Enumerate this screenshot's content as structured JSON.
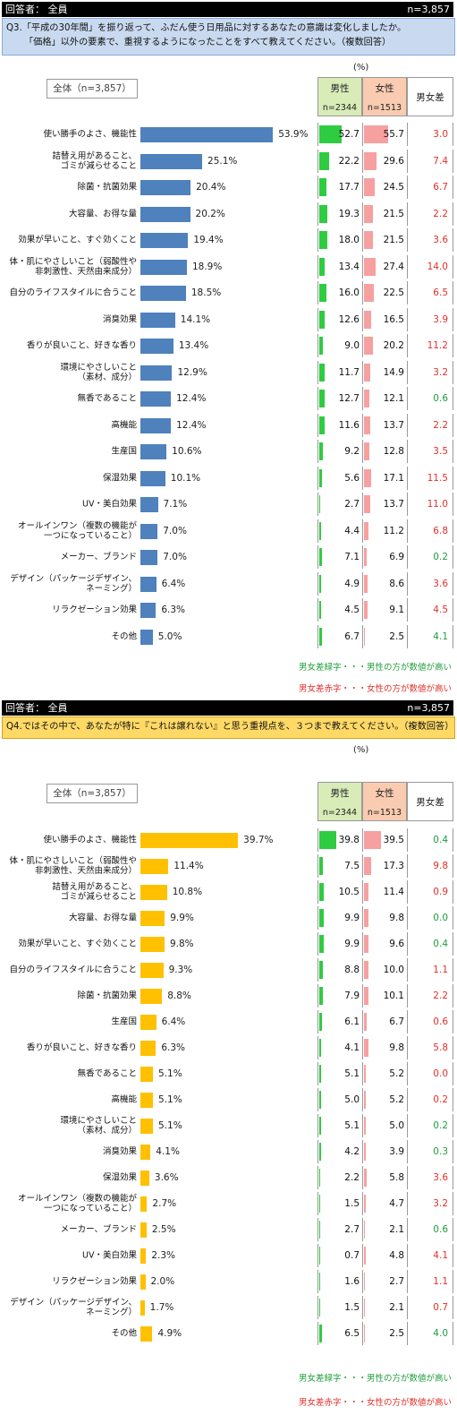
{
  "common": {
    "respondent": "回答者： 全員",
    "n_label": "n=3,857",
    "unit": "(%)",
    "total_label": "全体（n=3,857）",
    "male_label": "男性",
    "male_n": "n=2344",
    "female_label": "女性",
    "female_n": "n=1513",
    "diff_label": "男女差",
    "note_green": "男女差緑字・・・男性の方が数値が高い",
    "note_red": "男女差赤字・・・女性の方が数値が高い"
  },
  "colors": {
    "q3_bar": "#4f81bd",
    "q4_bar": "#ffc000",
    "male": "#2ecc40",
    "female": "#f7a0a0",
    "green": "#1e9e3a",
    "red": "#e0302a"
  },
  "q3": {
    "question": "Q3.「平成の30年間」を振り返って、ふだん使う日用品に対するあなたの意識は変化しましたか。",
    "question2": "「価格」以外の要素で、重視するようになったことをすべて教えてください。（複数回答）"
  },
  "q4": {
    "question": "Q4.ではその中で、あなたが特に『これは譲れない』と思う重視点を、３つまで教えてください。（複数回答）"
  },
  "chart_data": [
    {
      "type": "bar",
      "ylabel": "(%)",
      "categories": [
        "使い勝手のよさ、機能性",
        "詰替え用があること、ゴミが減らせること",
        "除菌・抗菌効果",
        "大容量、お得な量",
        "効果が早いこと、すぐ効くこと",
        "体・肌にやさしいこと（弱酸性や非刺激性、天然由来成分）",
        "自分のライフスタイルに合うこと",
        "消臭効果",
        "香りが良いこと、好きな香り",
        "環境にやさしいこと（素材、成分）",
        "無香であること",
        "高機能",
        "生産国",
        "保湿効果",
        "UV・美白効果",
        "オールインワン（複数の機能が一つになっていること）",
        "メーカー、ブランド",
        "デザイン（パッケージデザイン、ネーミング）",
        "リラクゼーション効果",
        "その他"
      ],
      "labels": [
        "使い勝手のよさ、機能性",
        "詰替え用があること、\nゴミが減らせること",
        "除菌・抗菌効果",
        "大容量、お得な量",
        "効果が早いこと、すぐ効くこと",
        "体・肌にやさしいこと（弱酸性や\n非刺激性、天然由来成分）",
        "自分のライフスタイルに合うこと",
        "消臭効果",
        "香りが良いこと、好きな香り",
        "環境にやさしいこと\n（素材、成分）",
        "無香であること",
        "高機能",
        "生産国",
        "保湿効果",
        "UV・美白効果",
        "オールインワン（複数の機能が\n一つになっていること）",
        "メーカー、ブランド",
        "デザイン（パッケージデザイン、\nネーミング）",
        "リラクゼーション効果",
        "その他"
      ],
      "series": [
        {
          "name": "全体（n=3,857）",
          "values": [
            53.9,
            25.1,
            20.4,
            20.2,
            19.4,
            18.9,
            18.5,
            14.1,
            13.4,
            12.9,
            12.4,
            12.4,
            10.6,
            10.1,
            7.1,
            7.0,
            7.0,
            6.4,
            6.3,
            5.0
          ]
        },
        {
          "name": "男性",
          "values": [
            52.7,
            22.2,
            17.7,
            19.3,
            18.0,
            13.4,
            16.0,
            12.6,
            9.0,
            11.7,
            12.7,
            11.6,
            9.2,
            5.6,
            2.7,
            4.4,
            7.1,
            4.9,
            4.5,
            6.7
          ]
        },
        {
          "name": "女性",
          "values": [
            55.7,
            29.6,
            24.5,
            21.5,
            21.5,
            27.4,
            22.5,
            16.5,
            20.2,
            14.9,
            12.1,
            13.7,
            12.8,
            17.1,
            13.7,
            11.2,
            6.9,
            8.6,
            9.1,
            2.5
          ]
        },
        {
          "name": "男女差",
          "values": [
            3.0,
            7.4,
            6.7,
            2.2,
            3.6,
            14.0,
            6.5,
            3.9,
            11.2,
            3.2,
            0.6,
            2.2,
            3.5,
            11.5,
            11.0,
            6.8,
            0.2,
            3.6,
            4.5,
            4.1
          ]
        }
      ],
      "diff_color": [
        "red",
        "red",
        "red",
        "red",
        "red",
        "red",
        "red",
        "red",
        "red",
        "red",
        "green",
        "red",
        "red",
        "red",
        "red",
        "red",
        "green",
        "red",
        "red",
        "green"
      ]
    },
    {
      "type": "bar",
      "ylabel": "(%)",
      "categories": [
        "使い勝手のよさ、機能性",
        "体・肌にやさしいこと（弱酸性や非刺激性、天然由来成分）",
        "詰替え用があること、ゴミが減らせること",
        "大容量、お得な量",
        "効果が早いこと、すぐ効くこと",
        "自分のライフスタイルに合うこと",
        "除菌・抗菌効果",
        "生産国",
        "香りが良いこと、好きな香り",
        "無香であること",
        "高機能",
        "環境にやさしいこと（素材、成分）",
        "消臭効果",
        "保湿効果",
        "オールインワン（複数の機能が一つになっていること）",
        "メーカー、ブランド",
        "UV・美白効果",
        "リラクゼーション効果",
        "デザイン（パッケージデザイン、ネーミング）",
        "その他"
      ],
      "labels": [
        "使い勝手のよさ、機能性",
        "体・肌にやさしいこと（弱酸性や\n非刺激性、天然由来成分）",
        "詰替え用があること、\nゴミが減らせること",
        "大容量、お得な量",
        "効果が早いこと、すぐ効くこと",
        "自分のライフスタイルに合うこと",
        "除菌・抗菌効果",
        "生産国",
        "香りが良いこと、好きな香り",
        "無香であること",
        "高機能",
        "環境にやさしいこと\n（素材、成分）",
        "消臭効果",
        "保湿効果",
        "オールインワン（複数の機能が\n一つになっていること）",
        "メーカー、ブランド",
        "UV・美白効果",
        "リラクゼーション効果",
        "デザイン（パッケージデザイン、\nネーミング）",
        "その他"
      ],
      "series": [
        {
          "name": "全体（n=3,857）",
          "values": [
            39.7,
            11.4,
            10.8,
            9.9,
            9.8,
            9.3,
            8.8,
            6.4,
            6.3,
            5.1,
            5.1,
            5.1,
            4.1,
            3.6,
            2.7,
            2.5,
            2.3,
            2.0,
            1.7,
            4.9
          ]
        },
        {
          "name": "男性",
          "values": [
            39.8,
            7.5,
            10.5,
            9.9,
            9.9,
            8.8,
            7.9,
            6.1,
            4.1,
            5.1,
            5.0,
            5.1,
            4.2,
            2.2,
            1.5,
            2.7,
            0.7,
            1.6,
            1.5,
            6.5
          ]
        },
        {
          "name": "女性",
          "values": [
            39.5,
            17.3,
            11.4,
            9.8,
            9.6,
            10.0,
            10.1,
            6.7,
            9.8,
            5.2,
            5.2,
            5.0,
            3.9,
            5.8,
            4.7,
            2.1,
            4.8,
            2.7,
            2.1,
            2.5
          ]
        },
        {
          "name": "男女差",
          "values": [
            0.4,
            9.8,
            0.9,
            0.0,
            0.4,
            1.1,
            2.2,
            0.6,
            5.8,
            0.0,
            0.2,
            0.2,
            0.3,
            3.6,
            3.2,
            0.6,
            4.1,
            1.1,
            0.7,
            4.0
          ]
        }
      ],
      "diff_color": [
        "green",
        "red",
        "red",
        "green",
        "green",
        "red",
        "red",
        "red",
        "red",
        "red",
        "red",
        "green",
        "green",
        "red",
        "red",
        "green",
        "red",
        "red",
        "red",
        "green"
      ]
    }
  ]
}
